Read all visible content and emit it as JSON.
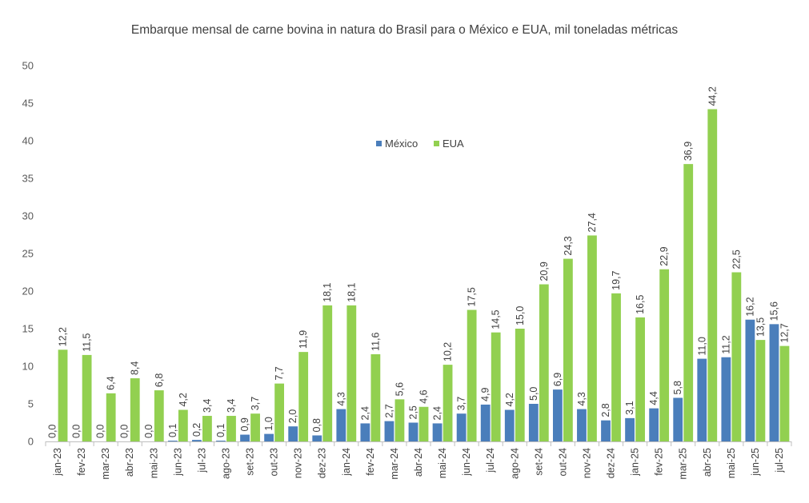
{
  "chart_data": {
    "type": "bar",
    "title": "Embarque mensal de carne bovina in natura do Brasil para o México e EUA, mil toneladas métricas",
    "xlabel": "",
    "ylabel": "",
    "ylim": [
      0,
      50
    ],
    "yticks": [
      "0",
      "5",
      "10",
      "15",
      "20",
      "25",
      "30",
      "35",
      "40",
      "45",
      "50"
    ],
    "legend_position": "top-center",
    "categories": [
      "jan-23",
      "fev-23",
      "mar-23",
      "abr-23",
      "mai-23",
      "jun-23",
      "jul-23",
      "ago-23",
      "set-23",
      "out-23",
      "nov-23",
      "dez-23",
      "jan-24",
      "fev-24",
      "mar-24",
      "abr-24",
      "mai-24",
      "jun-24",
      "jul-24",
      "ago-24",
      "set-24",
      "out-24",
      "nov-24",
      "dez-24",
      "jan-25",
      "fev-25",
      "mar-25",
      "abr-25",
      "mai-25",
      "jun-25",
      "jul-25"
    ],
    "series": [
      {
        "name": "México",
        "color": "#4A7EBB",
        "values": [
          0.0,
          0.0,
          0.0,
          0.0,
          0.0,
          0.1,
          0.2,
          0.1,
          0.9,
          1.0,
          2.0,
          0.8,
          4.3,
          2.4,
          2.7,
          2.5,
          2.4,
          3.7,
          4.9,
          4.2,
          5.0,
          6.9,
          4.3,
          2.8,
          3.1,
          4.4,
          5.8,
          11.0,
          11.2,
          16.2,
          15.6
        ],
        "labels": [
          "0,0",
          "0,0",
          "0,0",
          "0,0",
          "0,0",
          "0,1",
          "0,2",
          "0,1",
          "0,9",
          "1,0",
          "2,0",
          "0,8",
          "4,3",
          "2,4",
          "2,7",
          "2,5",
          "2,4",
          "3,7",
          "4,9",
          "4,2",
          "5,0",
          "6,9",
          "4,3",
          "2,8",
          "3,1",
          "4,4",
          "5,8",
          "11,0",
          "11,2",
          "16,2",
          "15,6"
        ]
      },
      {
        "name": "EUA",
        "color": "#92D050",
        "values": [
          12.2,
          11.5,
          6.4,
          8.4,
          6.8,
          4.2,
          3.4,
          3.4,
          3.7,
          7.7,
          11.9,
          18.1,
          18.1,
          11.6,
          5.6,
          4.6,
          10.2,
          17.5,
          14.5,
          15.0,
          20.9,
          24.3,
          27.4,
          19.7,
          16.5,
          22.9,
          36.9,
          44.2,
          22.5,
          13.5,
          12.7
        ],
        "labels": [
          "12,2",
          "11,5",
          "6,4",
          "8,4",
          "6,8",
          "4,2",
          "3,4",
          "3,4",
          "3,7",
          "7,7",
          "11,9",
          "18,1",
          "18,1",
          "11,6",
          "5,6",
          "4,6",
          "10,2",
          "17,5",
          "14,5",
          "15,0",
          "20,9",
          "24,3",
          "27,4",
          "19,7",
          "16,5",
          "22,9",
          "36,9",
          "44,2",
          "22,5",
          "13,5",
          "12,7"
        ]
      }
    ]
  }
}
